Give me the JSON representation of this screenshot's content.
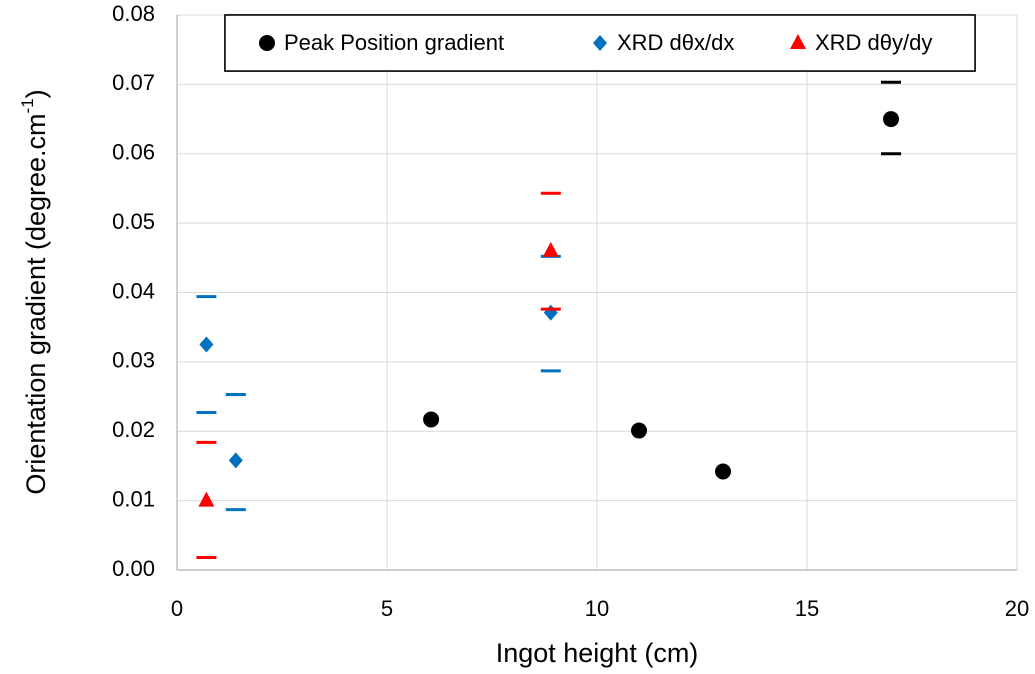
{
  "chart_data": {
    "type": "scatter",
    "xlabel": "Ingot height (cm)",
    "ylabel": {
      "text": "Orientation gradient (degree.cm",
      "sup": "-1",
      "end": ")"
    },
    "xlim": [
      0,
      20
    ],
    "xticks": [
      0,
      5,
      10,
      15,
      20
    ],
    "ylim": [
      0,
      0.08
    ],
    "yticks": [
      {
        "value": 0,
        "label": "0.00"
      },
      0.01,
      0.02,
      0.03,
      0.04,
      0.05,
      0.06,
      0.07,
      0.08
    ],
    "grid": true,
    "series": [
      {
        "name": "Peak Position gradient",
        "color": "#000000",
        "marker": "circle",
        "x": [
          6.05,
          11.0,
          13.0,
          17.0
        ],
        "values": [
          0.0217,
          0.0201,
          0.0142,
          0.065
        ],
        "err_plus": [
          null,
          null,
          null,
          0.0053
        ],
        "err_minus": [
          null,
          null,
          null,
          0.005
        ]
      },
      {
        "name": "XRD dθx/dx",
        "color": "#0070c0",
        "marker": "diamond",
        "x": [
          0.7,
          1.4,
          8.9
        ],
        "values": [
          0.0325,
          0.0158,
          0.0371
        ],
        "err_plus": [
          0.0069,
          0.0095,
          0.0081
        ],
        "err_minus": [
          0.0098,
          0.0071,
          0.0084
        ]
      },
      {
        "name": "XRD dθy/dy",
        "color": "#ff0000",
        "marker": "triangle",
        "x": [
          0.7,
          8.9
        ],
        "values": [
          0.01,
          0.046
        ],
        "err_plus": [
          0.0084,
          0.0083
        ],
        "err_minus": [
          0.0082,
          0.0084
        ]
      }
    ]
  }
}
